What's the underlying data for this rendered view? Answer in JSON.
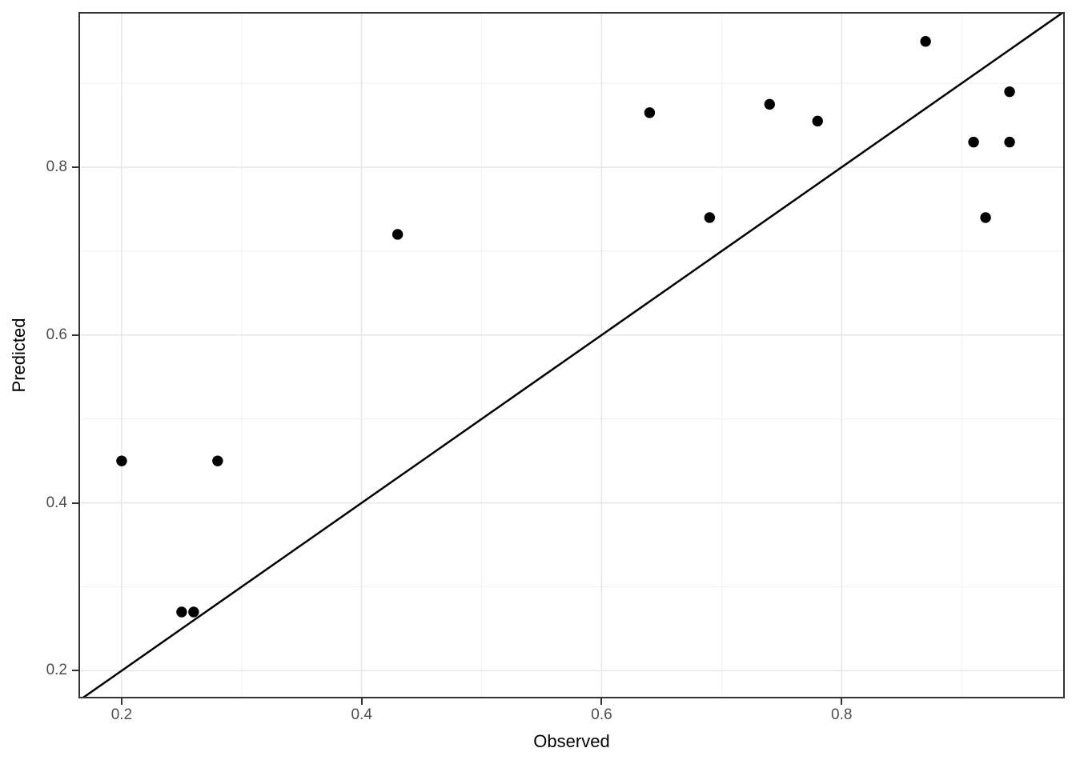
{
  "figure": {
    "background": "#FFFFFF"
  },
  "chart_data": {
    "type": "scatter",
    "title": "",
    "xlabel": "Observed",
    "ylabel": "Predicted",
    "xlim": [
      0.164,
      0.986
    ],
    "ylim": [
      0.167,
      0.985
    ],
    "x_ticks": [
      0.2,
      0.4,
      0.6,
      0.8
    ],
    "x_tick_labels": [
      "0.2",
      "0.4",
      "0.6",
      "0.8"
    ],
    "y_ticks": [
      0.2,
      0.4,
      0.6,
      0.8
    ],
    "y_tick_labels": [
      "0.2",
      "0.4",
      "0.6",
      "0.8"
    ],
    "x_minor_breaks": [
      0.3,
      0.5,
      0.7,
      0.9
    ],
    "y_minor_breaks": [
      0.3,
      0.5,
      0.7,
      0.9
    ],
    "grid": "major+minor",
    "legend": "none",
    "points": [
      {
        "x": 0.2,
        "y": 0.45
      },
      {
        "x": 0.25,
        "y": 0.27
      },
      {
        "x": 0.26,
        "y": 0.27
      },
      {
        "x": 0.28,
        "y": 0.45
      },
      {
        "x": 0.43,
        "y": 0.72
      },
      {
        "x": 0.64,
        "y": 0.865
      },
      {
        "x": 0.69,
        "y": 0.74
      },
      {
        "x": 0.74,
        "y": 0.875
      },
      {
        "x": 0.78,
        "y": 0.855
      },
      {
        "x": 0.87,
        "y": 0.95
      },
      {
        "x": 0.91,
        "y": 0.83
      },
      {
        "x": 0.92,
        "y": 0.74
      },
      {
        "x": 0.94,
        "y": 0.89
      },
      {
        "x": 0.94,
        "y": 0.83
      }
    ],
    "reference_line": {
      "type": "identity",
      "slope": 1,
      "intercept": 0
    }
  },
  "style": {
    "point_color": "#000000",
    "reference_line_color": "#000000",
    "grid_major_color": "#E7E7E7",
    "grid_minor_color": "#F1F1F1",
    "panel_border_color": "#333333",
    "tick_color": "#333333",
    "tick_label_color": "#4D4D4D",
    "axis_title_color": "#000000",
    "panel_background": "#FFFFFF"
  }
}
